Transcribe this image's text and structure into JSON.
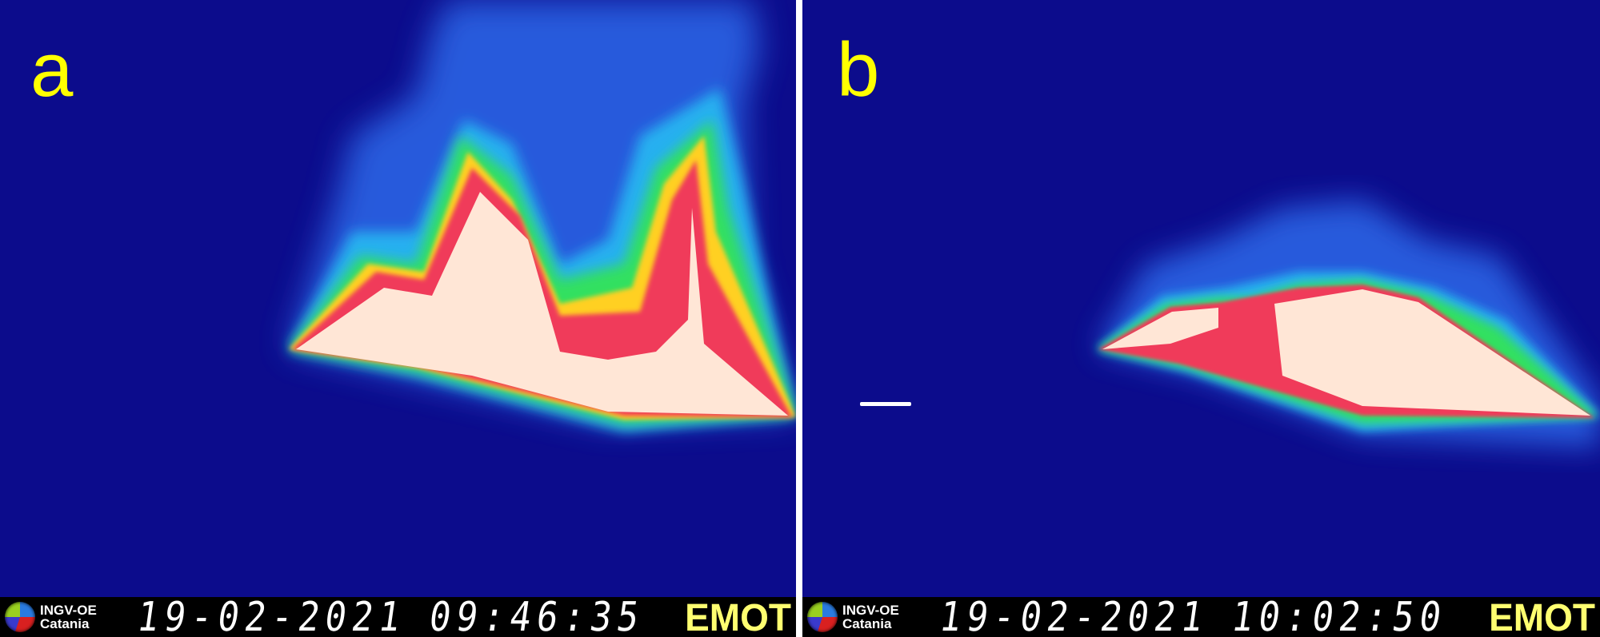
{
  "panels": [
    {
      "label": "a",
      "logo_text": [
        "INGV-OE",
        "Catania"
      ],
      "date": "19-02-2021",
      "time": "09:46:35",
      "camera": "EMOT"
    },
    {
      "label": "b",
      "logo_text": [
        "INGV-OE",
        "Catania"
      ],
      "date": "19-02-2021",
      "time": "10:02:50",
      "camera": "EMOT"
    }
  ],
  "colors": {
    "background": "#0c0c8c",
    "label": "#ffff00",
    "camera_tag": "#ffff70",
    "hot_core": "#ffe6d6"
  }
}
